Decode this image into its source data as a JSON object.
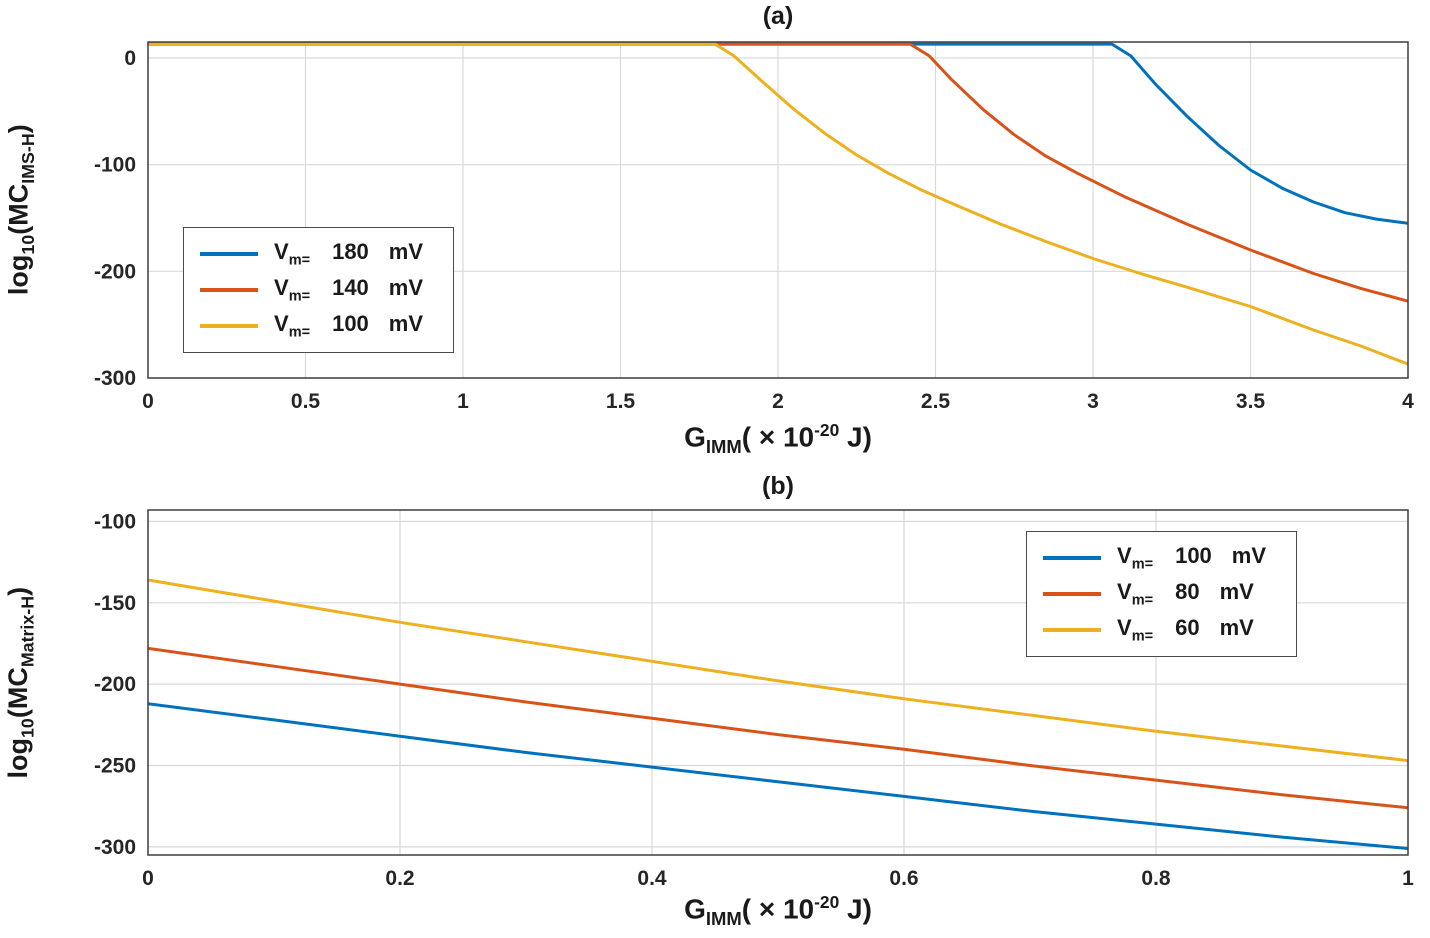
{
  "figure": {
    "background": "#ffffff",
    "axis_color": "#3f3f3f",
    "grid_color": "#d9d9d9",
    "tick_label_color": "#262626",
    "text_color": "#1a1a1a"
  },
  "chart_data": [
    {
      "type": "line",
      "title": "(a)",
      "xlabel": "G_IMM( × 10^-20 J)",
      "ylabel": "log10(MC_IMS-H)",
      "xlabel_parts": {
        "sym": "G",
        "sym_sub": "IMM",
        "mid": "( × 10",
        "exp": "-20",
        "end": " J)"
      },
      "ylabel_parts": {
        "fn": "log",
        "fn_sub": "10",
        "open": "(MC",
        "sub": "IMS-H",
        "close": ")"
      },
      "xlim": [
        0,
        4
      ],
      "ylim": [
        -300,
        15
      ],
      "xticks": [
        0,
        0.5,
        1,
        1.5,
        2,
        2.5,
        3,
        3.5,
        4
      ],
      "xtick_labels": [
        "0",
        "0.5",
        "1",
        "1.5",
        "2",
        "2.5",
        "3",
        "3.5",
        "4"
      ],
      "yticks": [
        0,
        -100,
        -200,
        -300
      ],
      "ytick_labels": [
        "0",
        "-100",
        "-200",
        "-300"
      ],
      "grid": true,
      "legend_position": "west",
      "series": [
        {
          "id": "vm-180",
          "name": "Vm= 180 mV",
          "color": "#0072BD",
          "legend": {
            "sym": "V",
            "sub": "m=",
            "val": "180",
            "unit": "mV"
          },
          "points": [
            [
              0,
              13
            ],
            [
              3.06,
              13
            ],
            [
              3.12,
              2
            ],
            [
              3.2,
              -25
            ],
            [
              3.3,
              -55
            ],
            [
              3.4,
              -82
            ],
            [
              3.5,
              -105
            ],
            [
              3.6,
              -122
            ],
            [
              3.7,
              -135
            ],
            [
              3.8,
              -145
            ],
            [
              3.9,
              -151
            ],
            [
              4,
              -155
            ]
          ]
        },
        {
          "id": "vm-140",
          "name": "Vm= 140 mV",
          "color": "#D95319",
          "legend": {
            "sym": "V",
            "sub": "m=",
            "val": "140",
            "unit": "mV"
          },
          "points": [
            [
              0,
              13
            ],
            [
              2.42,
              13
            ],
            [
              2.48,
              2
            ],
            [
              2.55,
              -20
            ],
            [
              2.65,
              -48
            ],
            [
              2.75,
              -72
            ],
            [
              2.85,
              -92
            ],
            [
              2.95,
              -108
            ],
            [
              3.1,
              -130
            ],
            [
              3.3,
              -156
            ],
            [
              3.5,
              -180
            ],
            [
              3.7,
              -202
            ],
            [
              3.85,
              -216
            ],
            [
              4,
              -228
            ]
          ]
        },
        {
          "id": "vm-100",
          "name": "Vm= 100 mV",
          "color": "#EDB120",
          "legend": {
            "sym": "V",
            "sub": "m=",
            "val": "100",
            "unit": "mV"
          },
          "points": [
            [
              0,
              13
            ],
            [
              1.8,
              13
            ],
            [
              1.86,
              2
            ],
            [
              1.95,
              -22
            ],
            [
              2.05,
              -48
            ],
            [
              2.15,
              -71
            ],
            [
              2.25,
              -91
            ],
            [
              2.35,
              -108
            ],
            [
              2.45,
              -123
            ],
            [
              2.55,
              -136
            ],
            [
              2.7,
              -155
            ],
            [
              2.85,
              -172
            ],
            [
              3,
              -188
            ],
            [
              3.15,
              -202
            ],
            [
              3.3,
              -215
            ],
            [
              3.5,
              -233
            ],
            [
              3.7,
              -255
            ],
            [
              3.85,
              -270
            ],
            [
              4,
              -287
            ]
          ]
        }
      ]
    },
    {
      "type": "line",
      "title": "(b)",
      "xlabel": "G_IMM( × 10^-20 J)",
      "ylabel": "log10(MC_Matrix-H)",
      "xlabel_parts": {
        "sym": "G",
        "sym_sub": "IMM",
        "mid": "( × 10",
        "exp": "-20",
        "end": " J)"
      },
      "ylabel_parts": {
        "fn": "log",
        "fn_sub": "10",
        "open": "(MC",
        "sub": "Matrix-H",
        "close": ")"
      },
      "xlim": [
        0,
        1
      ],
      "ylim": [
        -305,
        -93
      ],
      "xticks": [
        0,
        0.2,
        0.4,
        0.6,
        0.8,
        1
      ],
      "xtick_labels": [
        "0",
        "0.2",
        "0.4",
        "0.6",
        "0.8",
        "1"
      ],
      "yticks": [
        -100,
        -150,
        -200,
        -250,
        -300
      ],
      "ytick_labels": [
        "-100",
        "-150",
        "-200",
        "-250",
        "-300"
      ],
      "grid": true,
      "legend_position": "northeast",
      "series": [
        {
          "id": "vm-100",
          "name": "Vm= 100 mV",
          "color": "#0072BD",
          "legend": {
            "sym": "V",
            "sub": "m=",
            "val": "100",
            "unit": "mV"
          },
          "points": [
            [
              0,
              -212
            ],
            [
              0.1,
              -222
            ],
            [
              0.2,
              -232
            ],
            [
              0.3,
              -242
            ],
            [
              0.4,
              -251
            ],
            [
              0.5,
              -260
            ],
            [
              0.6,
              -269
            ],
            [
              0.7,
              -278
            ],
            [
              0.8,
              -286
            ],
            [
              0.9,
              -294
            ],
            [
              1,
              -301
            ]
          ]
        },
        {
          "id": "vm-80",
          "name": "Vm= 80 mV",
          "color": "#D95319",
          "legend": {
            "sym": "V",
            "sub": "m=",
            "val": "80",
            "unit": "mV"
          },
          "points": [
            [
              0,
              -178
            ],
            [
              0.1,
              -189
            ],
            [
              0.2,
              -200
            ],
            [
              0.3,
              -211
            ],
            [
              0.4,
              -221
            ],
            [
              0.5,
              -231
            ],
            [
              0.6,
              -240
            ],
            [
              0.7,
              -250
            ],
            [
              0.8,
              -259
            ],
            [
              0.9,
              -268
            ],
            [
              1,
              -276
            ]
          ]
        },
        {
          "id": "vm-60",
          "name": "Vm= 60 mV",
          "color": "#EDB120",
          "legend": {
            "sym": "V",
            "sub": "m=",
            "val": "60",
            "unit": "mV"
          },
          "points": [
            [
              0,
              -136
            ],
            [
              0.1,
              -149
            ],
            [
              0.2,
              -162
            ],
            [
              0.3,
              -174
            ],
            [
              0.4,
              -186
            ],
            [
              0.5,
              -198
            ],
            [
              0.6,
              -209
            ],
            [
              0.7,
              -219
            ],
            [
              0.8,
              -229
            ],
            [
              0.9,
              -238
            ],
            [
              1,
              -247
            ]
          ]
        }
      ]
    }
  ]
}
